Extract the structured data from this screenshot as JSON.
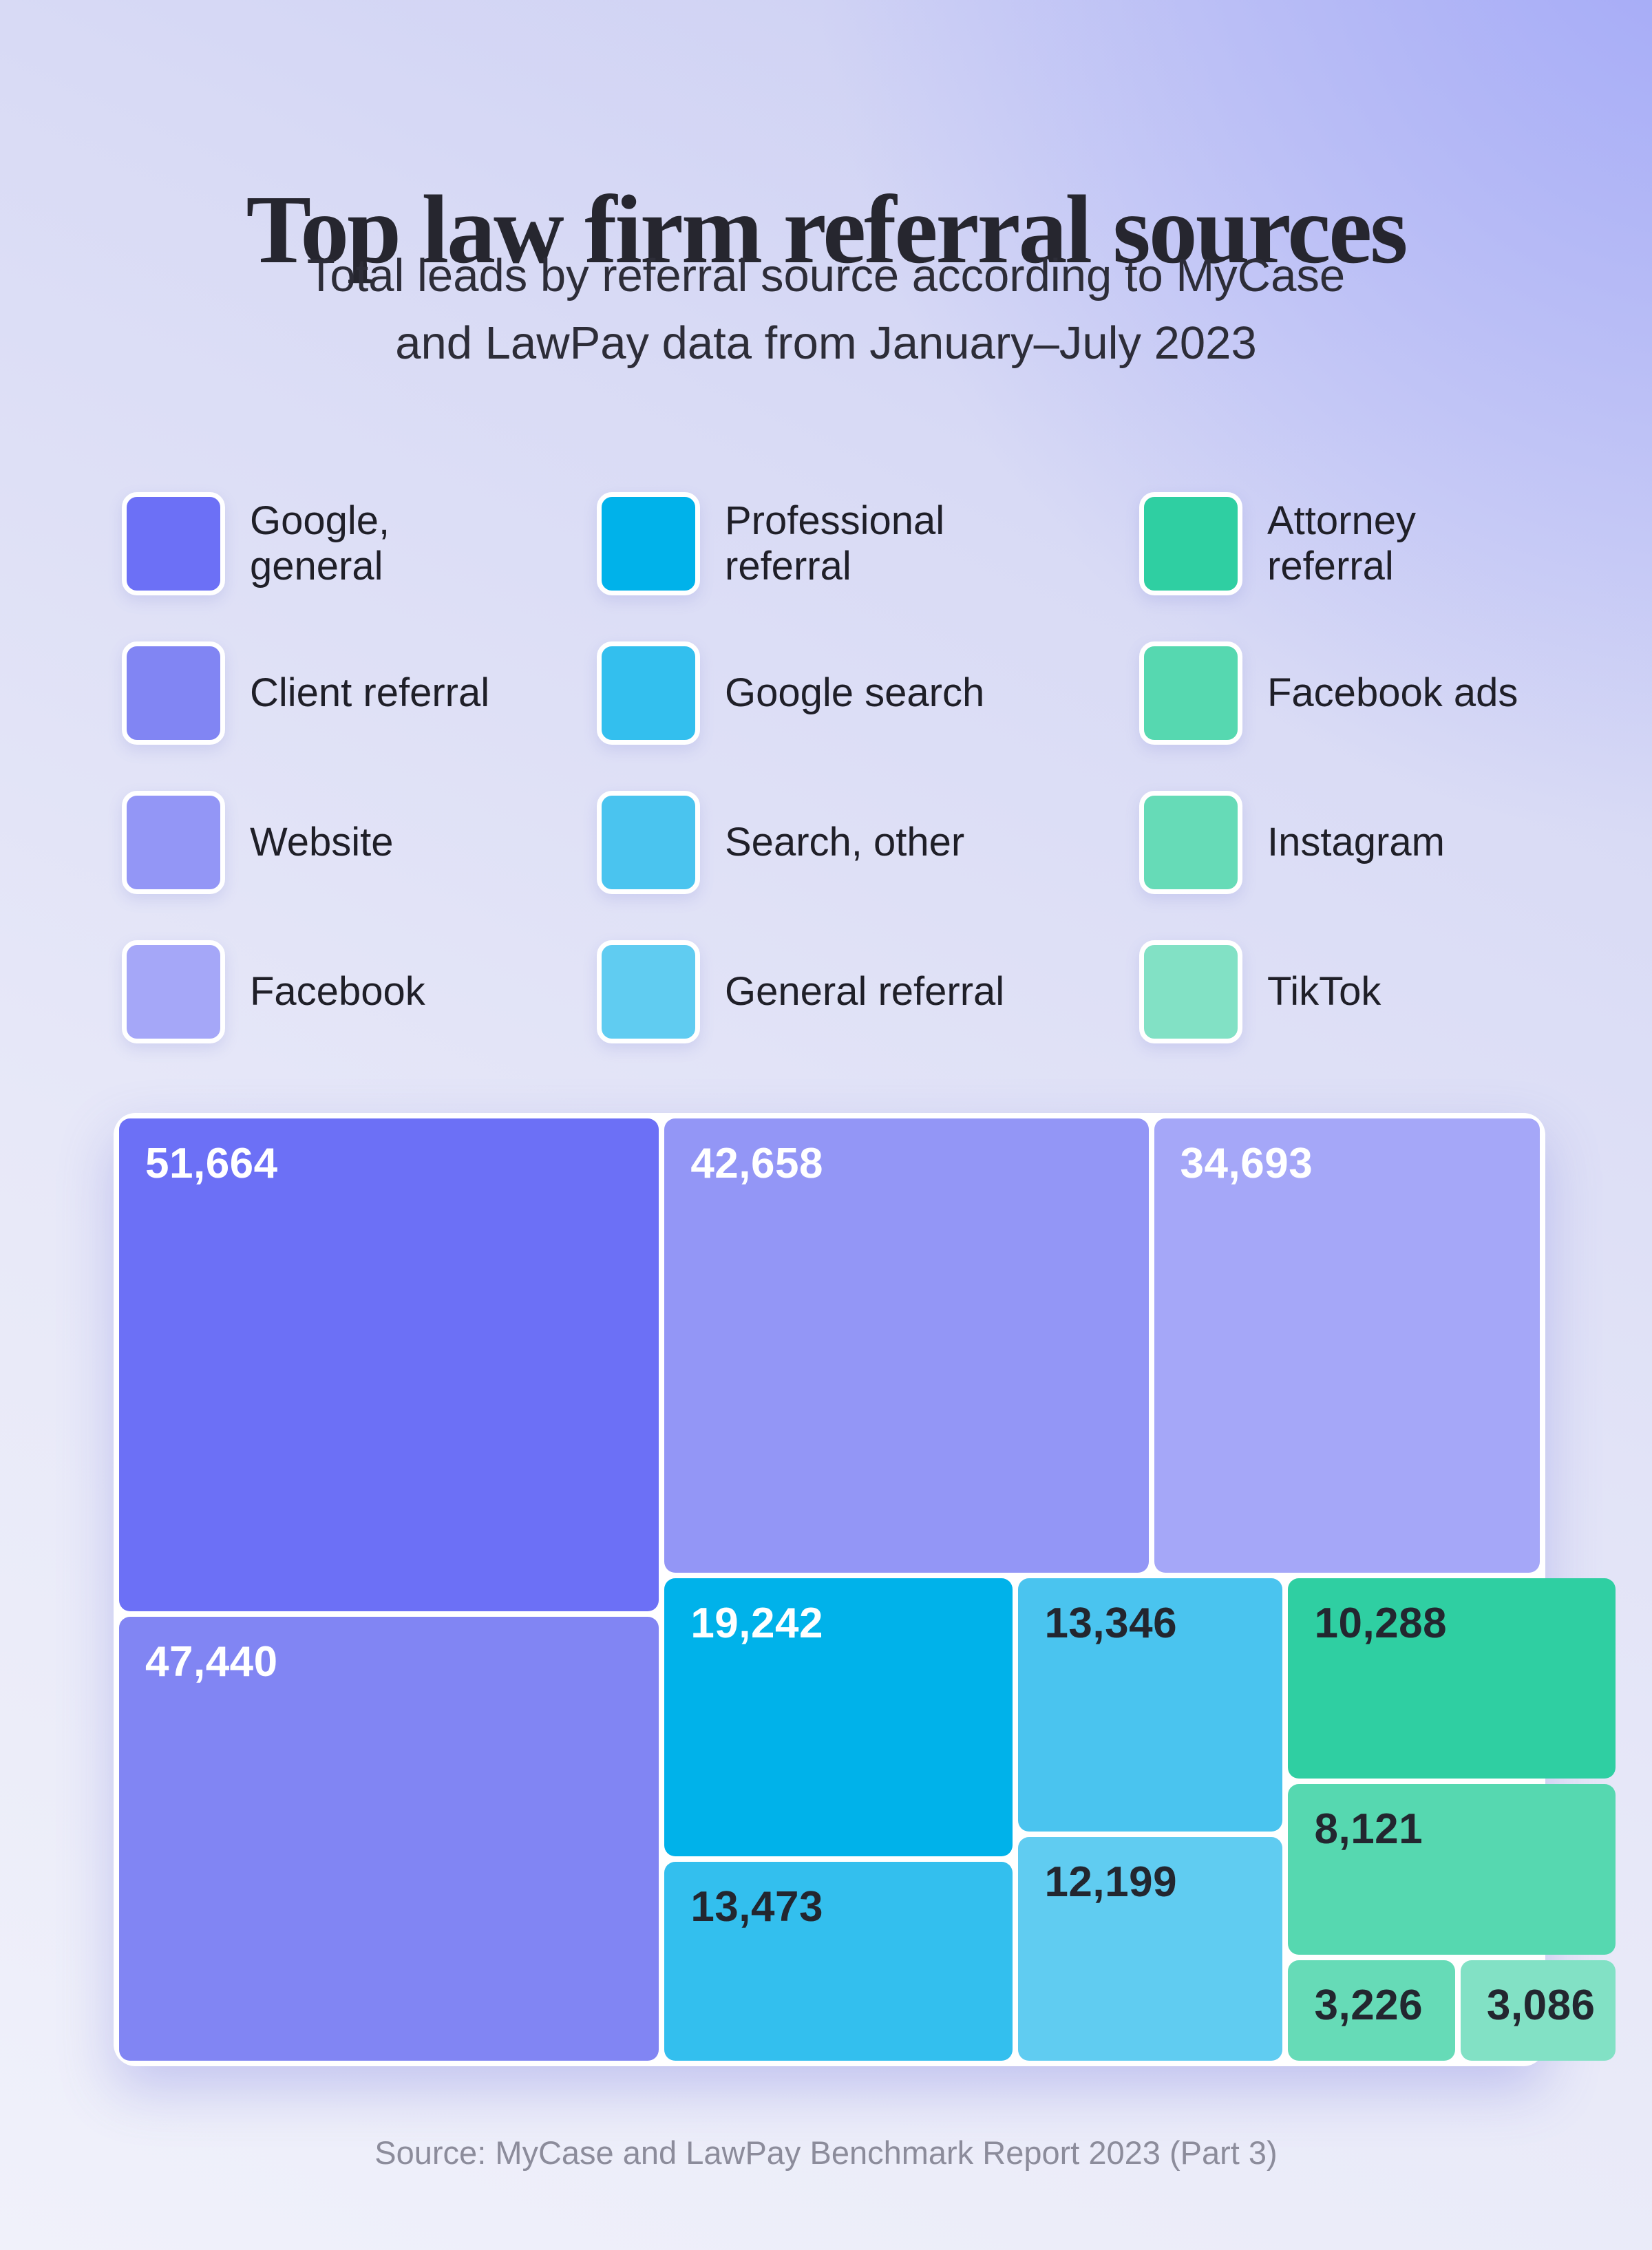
{
  "header": {
    "title": "Top law firm referral sources",
    "subtitle_line1": "Total leads by referral source according to MyCase",
    "subtitle_line2": "and LawPay data from January–July 2023"
  },
  "legend": {
    "rows": [
      [
        {
          "line1": "Google,",
          "line2": "general"
        },
        {
          "line1": "Professional",
          "line2": "referral"
        },
        {
          "line1": "Attorney",
          "line2": "referral"
        }
      ],
      [
        {
          "line1": "Client referral",
          "line2": ""
        },
        {
          "line1": "Google search",
          "line2": ""
        },
        {
          "line1": "Facebook ads",
          "line2": ""
        }
      ],
      [
        {
          "line1": "Website",
          "line2": ""
        },
        {
          "line1": "Search, other",
          "line2": ""
        },
        {
          "line1": "Instagram",
          "line2": ""
        }
      ],
      [
        {
          "line1": "Facebook",
          "line2": ""
        },
        {
          "line1": "General referral",
          "line2": ""
        },
        {
          "line1": "TikTok",
          "line2": ""
        }
      ]
    ]
  },
  "chart_data": {
    "type": "treemap",
    "title": "Top law firm referral sources",
    "items": [
      {
        "name": "Google, general",
        "value": 51664,
        "label": "51,664",
        "color": "#6C70F6",
        "text_color": "#FFFFFF"
      },
      {
        "name": "Client referral",
        "value": 47440,
        "label": "47,440",
        "color": "#8185F3",
        "text_color": "#FFFFFF"
      },
      {
        "name": "Website",
        "value": 42658,
        "label": "42,658",
        "color": "#9396F6",
        "text_color": "#FFFFFF"
      },
      {
        "name": "Facebook",
        "value": 34693,
        "label": "34,693",
        "color": "#A5A7F8",
        "text_color": "#FFFFFF"
      },
      {
        "name": "Professional referral",
        "value": 19242,
        "label": "19,242",
        "color": "#00B2EA",
        "text_color": "#FFFFFF"
      },
      {
        "name": "Google search",
        "value": 13473,
        "label": "13,473",
        "color": "#33BFEE",
        "text_color": "#23262F"
      },
      {
        "name": "Search, other",
        "value": 13346,
        "label": "13,346",
        "color": "#4AC4EF",
        "text_color": "#23262F"
      },
      {
        "name": "General referral",
        "value": 12199,
        "label": "12,199",
        "color": "#60CCF1",
        "text_color": "#23262F"
      },
      {
        "name": "Attorney referral",
        "value": 10288,
        "label": "10,288",
        "color": "#2FCFA2",
        "text_color": "#23262F"
      },
      {
        "name": "Facebook ads",
        "value": 8121,
        "label": "8,121",
        "color": "#56D8B0",
        "text_color": "#23262F"
      },
      {
        "name": "Instagram",
        "value": 3226,
        "label": "3,226",
        "color": "#66DBB7",
        "text_color": "#23262F"
      },
      {
        "name": "TikTok",
        "value": 3086,
        "label": "3,086",
        "color": "#82E1C5",
        "text_color": "#23262F"
      }
    ]
  },
  "footer": {
    "source": "Source: MyCase and LawPay Benchmark Report 2023 (Part 3)"
  }
}
